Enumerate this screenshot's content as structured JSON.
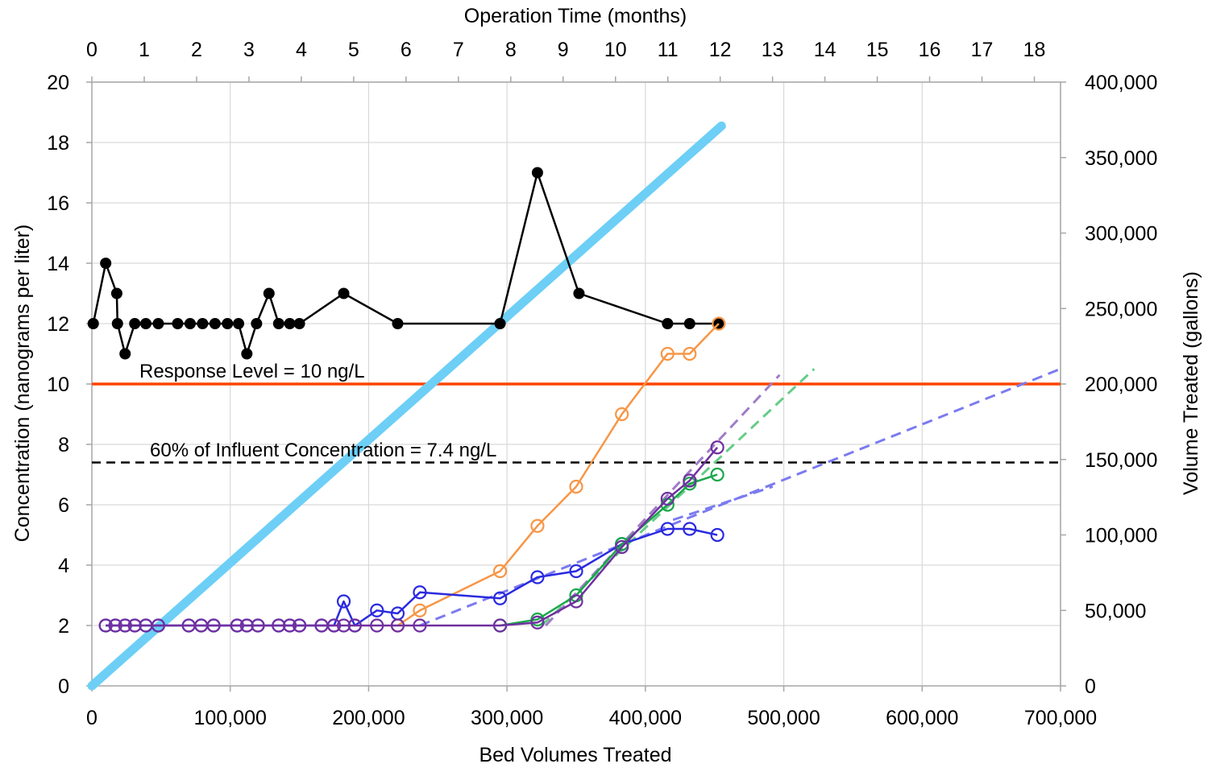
{
  "chart_data": {
    "type": "line",
    "xlabel": "Bed Volumes Treated",
    "ylabel": "Concentration (nanograms per liter)",
    "y2label": "Volume Treated (gallons)",
    "x2label": "Operation Time (months)",
    "xlim": [
      0,
      700000
    ],
    "ylim": [
      0,
      20
    ],
    "y2lim": [
      0,
      400000
    ],
    "x2lim": [
      0,
      18.5
    ],
    "grid": true,
    "x_ticks": [
      "0",
      "100,000",
      "200,000",
      "300,000",
      "400,000",
      "500,000",
      "600,000",
      "700,000"
    ],
    "y_ticks": [
      "0",
      "2",
      "4",
      "6",
      "8",
      "10",
      "12",
      "14",
      "16",
      "18",
      "20"
    ],
    "y2_ticks": [
      "0",
      "50,000",
      "100,000",
      "150,000",
      "200,000",
      "250,000",
      "300,000",
      "350,000",
      "400,000"
    ],
    "x2_ticks": [
      "0",
      "1",
      "2",
      "3",
      "4",
      "5",
      "6",
      "7",
      "8",
      "9",
      "10",
      "11",
      "12",
      "13",
      "14",
      "15",
      "16",
      "17",
      "18"
    ],
    "colors": {
      "influent": "#000000",
      "orange": "#f79646",
      "blue": "#2a2ae0",
      "green": "#18a84a",
      "purple": "#7030a0",
      "volume": "#6dcff6",
      "response": "#ff4500",
      "threshold": "#000000",
      "trend_blue": "#7b7bf0",
      "trend_green": "#66cc88",
      "trend_purple": "#a07cc8"
    },
    "annotations": {
      "response_level": "Response Level = 10 ng/L",
      "sixty_percent": "60% of Influent Concentration = 7.4 ng/L"
    },
    "reference_lines": {
      "response_level": 10,
      "sixty_percent": 7.4
    },
    "volume_line": {
      "axis": "y2",
      "x": [
        0,
        455000
      ],
      "y": [
        0,
        371000
      ]
    },
    "series": [
      {
        "key": "influent",
        "marker": "filled",
        "x": [
          1000,
          10000,
          18000,
          18500,
          24000,
          31000,
          39000,
          48000,
          62000,
          71000,
          80000,
          89000,
          98000,
          106000,
          112000,
          119000,
          128000,
          135000,
          143000,
          150000,
          182000,
          221000,
          295000,
          322000,
          352000,
          416000,
          432000,
          453000
        ],
        "y": [
          12,
          14,
          13,
          12,
          11,
          12,
          12,
          12,
          12,
          12,
          12,
          12,
          12,
          12,
          11,
          12,
          13,
          12,
          12,
          12,
          13,
          12,
          12,
          17,
          13,
          12,
          12,
          12
        ]
      },
      {
        "key": "orange",
        "marker": "open",
        "x": [
          221000,
          237000,
          295000,
          322000,
          350000,
          383000,
          416000,
          432000,
          453000
        ],
        "y": [
          2,
          2.5,
          3.8,
          5.3,
          6.6,
          9,
          11,
          11,
          12
        ]
      },
      {
        "key": "blue",
        "marker": "open",
        "x": [
          10000,
          17000,
          24000,
          31000,
          39000,
          48000,
          70000,
          79000,
          88000,
          105000,
          112000,
          120000,
          135000,
          143000,
          150000,
          166000,
          175000,
          182000,
          190000,
          206000,
          221000,
          237000,
          295000,
          322000,
          350000,
          383000,
          416000,
          432000,
          452000
        ],
        "y": [
          2,
          2,
          2,
          2,
          2,
          2,
          2,
          2,
          2,
          2,
          2,
          2,
          2,
          2,
          2,
          2,
          2,
          2.8,
          2,
          2.5,
          2.4,
          3.1,
          2.9,
          3.6,
          3.8,
          4.7,
          5.2,
          5.2,
          5
        ]
      },
      {
        "key": "green",
        "marker": "open",
        "x": [
          295000,
          322000,
          350000,
          383000,
          416000,
          432000,
          452000
        ],
        "y": [
          2,
          2.2,
          3,
          4.7,
          6,
          6.7,
          7
        ]
      },
      {
        "key": "purple",
        "marker": "open",
        "x": [
          10000,
          17000,
          24000,
          31000,
          39000,
          48000,
          70000,
          79000,
          88000,
          105000,
          112000,
          120000,
          135000,
          143000,
          150000,
          166000,
          175000,
          182000,
          190000,
          206000,
          221000,
          237000,
          295000,
          322000,
          350000,
          383000,
          416000,
          432000,
          452000
        ],
        "y": [
          2,
          2,
          2,
          2,
          2,
          2,
          2,
          2,
          2,
          2,
          2,
          2,
          2,
          2,
          2,
          2,
          2,
          2,
          2,
          2,
          2,
          2,
          2,
          2.1,
          2.8,
          4.6,
          6.2,
          6.8,
          7.9
        ]
      }
    ],
    "trend_lines": [
      {
        "key": "trend_blue",
        "x": [
          237000,
          700000
        ],
        "y": [
          2,
          10.5
        ]
      },
      {
        "key": "trend_blue",
        "x": [
          420000,
          492000
        ],
        "y": [
          5.5,
          6.6
        ]
      },
      {
        "key": "trend_green",
        "x": [
          325000,
          522000
        ],
        "y": [
          2,
          10.5
        ]
      },
      {
        "key": "trend_purple",
        "x": [
          328000,
          497000
        ],
        "y": [
          2,
          10.3
        ]
      }
    ]
  }
}
